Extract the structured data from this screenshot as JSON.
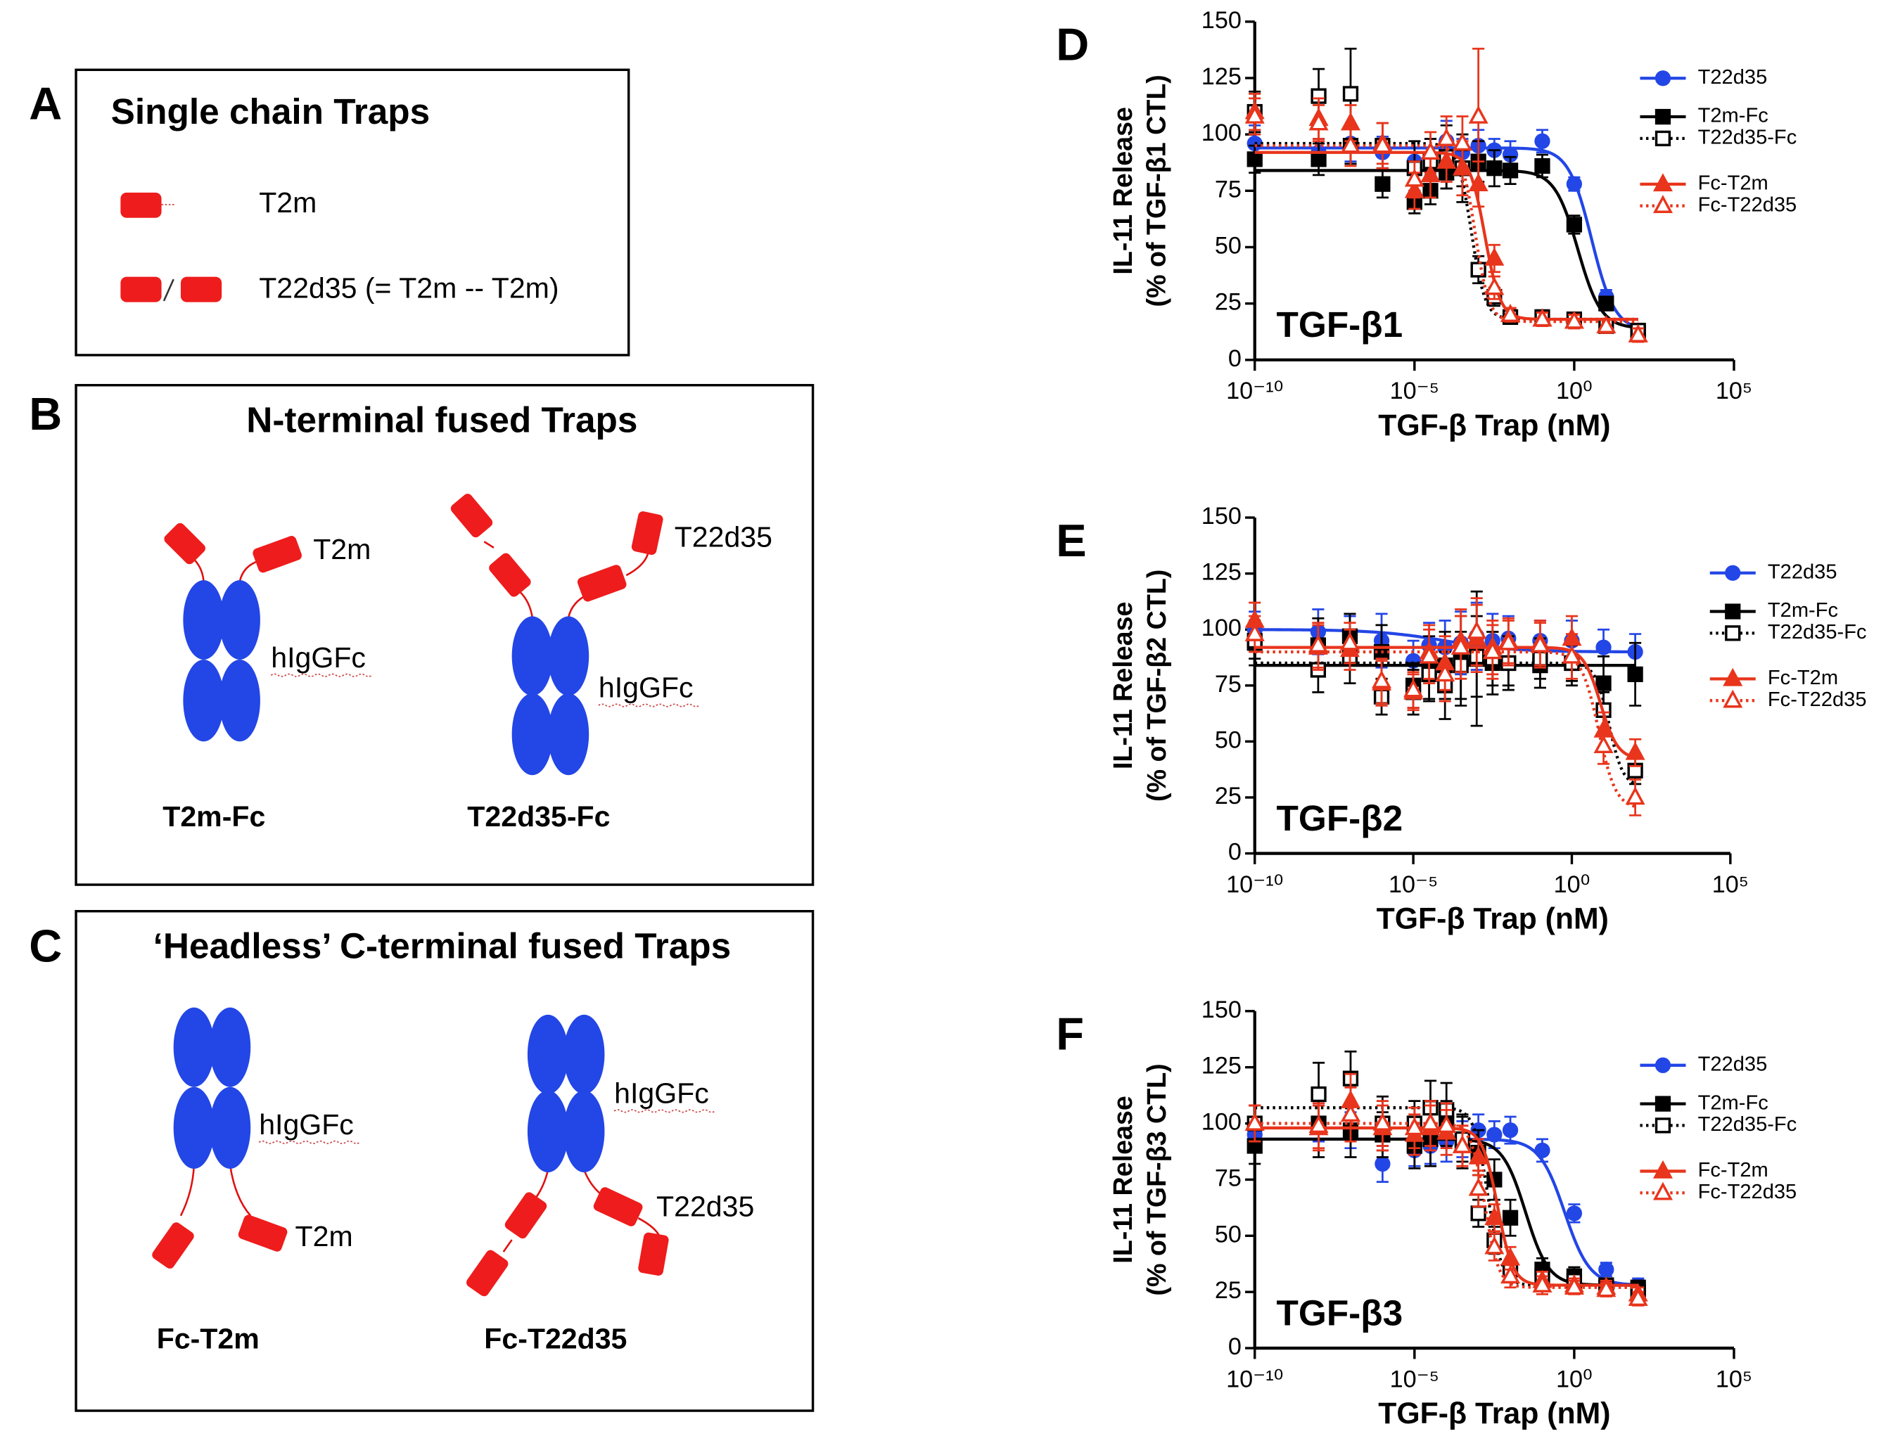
{
  "panels": [
    {
      "letter": "A",
      "title": "Single chain Traps",
      "items": [
        "T2m",
        "T22d35 (= T2m -- T2m)"
      ]
    },
    {
      "letter": "B",
      "title": "N-terminal fused Traps",
      "constructs": [
        {
          "name": "T2m-Fc",
          "arm": "T2m",
          "fc": "hIgGFc"
        },
        {
          "name": "T22d35-Fc",
          "arm": "T22d35",
          "fc": "hIgGFc"
        }
      ]
    },
    {
      "letter": "C",
      "title": "‘Headless’ C-terminal fused Traps",
      "constructs": [
        {
          "name": "Fc-T2m",
          "arm": "T2m",
          "fc": "hIgGFc"
        },
        {
          "name": "Fc-T22d35",
          "arm": "T22d35",
          "fc": "hIgGFc"
        }
      ]
    }
  ],
  "chart_data": [
    {
      "type": "scatter",
      "panel": "D",
      "title": "TGF-β1",
      "ylabel": "IL-11 Release",
      "ylabel_sub": "(% of TGF-β1 CTL)",
      "xlabel": "TGF-β Trap (nM)",
      "xscale": "log",
      "xlim": [
        1e-10,
        100000
      ],
      "ylim": [
        0,
        150
      ],
      "xticks": [
        {
          "value": 1e-10,
          "label": "10⁻¹⁰"
        },
        {
          "value": 1e-05,
          "label": "10⁻⁵"
        },
        {
          "value": 1,
          "label": "10⁰"
        },
        {
          "value": 100000,
          "label": "10⁵"
        }
      ],
      "yticks": [
        0,
        25,
        50,
        75,
        100,
        125,
        150
      ],
      "x": [
        1e-10,
        1e-08,
        1e-07,
        1e-06,
        1e-05,
        3.16e-05,
        0.0001,
        0.000316,
        0.001,
        0.00316,
        0.01,
        0.1,
        1,
        10,
        100
      ],
      "series": [
        {
          "name": "T22d35",
          "color": "#2346e6",
          "marker": "circle",
          "filled": true,
          "dashed": false,
          "values": [
            96,
            92,
            96,
            92,
            88,
            90,
            97,
            92,
            95,
            93,
            91,
            97,
            78,
            28,
            12
          ],
          "errors": [
            8,
            6,
            8,
            7,
            6,
            8,
            9,
            6,
            7,
            5,
            6,
            5,
            3,
            3,
            3
          ],
          "fit": {
            "top": 94,
            "bottom": 13,
            "ic50": 3.5,
            "hill": 1.2
          }
        },
        {
          "name": "T2m-Fc",
          "color": "#000000",
          "marker": "square",
          "filled": true,
          "dashed": false,
          "values": [
            89,
            89,
            95,
            78,
            70,
            75,
            83,
            85,
            88,
            85,
            84,
            86,
            60,
            25,
            12
          ],
          "errors": [
            6,
            7,
            8,
            6,
            5,
            6,
            7,
            8,
            9,
            8,
            6,
            5,
            4,
            3,
            3
          ],
          "fit": {
            "top": 84,
            "bottom": 14,
            "ic50": 1.3,
            "hill": 1.2
          }
        },
        {
          "name": "T22d35-Fc",
          "color": "#000000",
          "marker": "square",
          "filled": false,
          "dashed": true,
          "values": [
            110,
            117,
            118,
            95,
            85,
            88,
            90,
            85,
            40,
            28,
            19,
            19,
            18,
            15,
            13
          ],
          "errors": [
            9,
            12,
            20,
            10,
            12,
            10,
            14,
            15,
            6,
            4,
            3,
            3,
            3,
            3,
            3
          ],
          "fit": {
            "top": 96,
            "bottom": 18,
            "ic50": 0.0006,
            "hill": 2
          }
        },
        {
          "name": "Fc-T2m",
          "color": "#e8351c",
          "marker": "triangle",
          "filled": true,
          "dashed": false,
          "values": [
            110,
            107,
            105,
            96,
            75,
            82,
            88,
            85,
            78,
            45,
            20,
            18,
            17,
            15,
            11
          ],
          "errors": [
            8,
            9,
            8,
            9,
            8,
            10,
            9,
            12,
            10,
            6,
            3,
            3,
            3,
            3,
            3
          ],
          "fit": {
            "top": 92,
            "bottom": 18,
            "ic50": 0.0016,
            "hill": 1.8
          }
        },
        {
          "name": "Fc-T22d35",
          "color": "#e8351c",
          "marker": "triangle",
          "filled": false,
          "dashed": true,
          "values": [
            108,
            105,
            95,
            95,
            80,
            92,
            98,
            96,
            108,
            32,
            20,
            18,
            17,
            15,
            11
          ],
          "errors": [
            8,
            8,
            9,
            10,
            8,
            9,
            10,
            12,
            30,
            5,
            3,
            3,
            3,
            3,
            3
          ],
          "fit": {
            "top": 95,
            "bottom": 17,
            "ic50": 0.0008,
            "hill": 2
          }
        }
      ]
    },
    {
      "type": "scatter",
      "panel": "E",
      "title": "TGF-β2",
      "ylabel": "IL-11 Release",
      "ylabel_sub": "(% of TGF-β2 CTL)",
      "xlabel": "TGF-β Trap (nM)",
      "xscale": "log",
      "xlim": [
        1e-10,
        100000
      ],
      "ylim": [
        0,
        150
      ],
      "xticks": [
        {
          "value": 1e-10,
          "label": "10⁻¹⁰"
        },
        {
          "value": 1e-05,
          "label": "10⁻⁵"
        },
        {
          "value": 1,
          "label": "10⁰"
        },
        {
          "value": 100000,
          "label": "10⁵"
        }
      ],
      "yticks": [
        0,
        25,
        50,
        75,
        100,
        125,
        150
      ],
      "x": [
        1e-10,
        1e-08,
        1e-07,
        1e-06,
        1e-05,
        3.16e-05,
        0.0001,
        0.000316,
        0.001,
        0.00316,
        0.01,
        0.1,
        1,
        10,
        100
      ],
      "series": [
        {
          "name": "T22d35",
          "color": "#2346e6",
          "marker": "circle",
          "filled": true,
          "dashed": false,
          "values": [
            100,
            99,
            97,
            95,
            86,
            93,
            92,
            94,
            97,
            95,
            96,
            95,
            95,
            92,
            90
          ],
          "errors": [
            8,
            10,
            9,
            12,
            9,
            10,
            12,
            14,
            15,
            12,
            10,
            9,
            9,
            8,
            8
          ],
          "fit": {
            "top": 100,
            "bottom": 90,
            "ic50": 0.0001,
            "hill": 0.4
          }
        },
        {
          "name": "T2m-Fc",
          "color": "#000000",
          "marker": "square",
          "filled": true,
          "dashed": false,
          "values": [
            94,
            93,
            97,
            90,
            75,
            83,
            84,
            86,
            87,
            85,
            85,
            84,
            85,
            76,
            80
          ],
          "errors": [
            10,
            12,
            10,
            12,
            10,
            14,
            15,
            20,
            30,
            14,
            12,
            10,
            10,
            12,
            14
          ],
          "fit": {
            "top": 84,
            "bottom": 84,
            "ic50": 1,
            "hill": 1
          }
        },
        {
          "name": "T22d35-Fc",
          "color": "#000000",
          "marker": "square",
          "filled": false,
          "dashed": true,
          "values": [
            95,
            82,
            88,
            70,
            72,
            80,
            75,
            84,
            88,
            87,
            85,
            87,
            85,
            64,
            37
          ],
          "errors": [
            8,
            10,
            12,
            8,
            10,
            12,
            15,
            15,
            18,
            12,
            10,
            9,
            8,
            8,
            6
          ],
          "fit": {
            "top": 85,
            "bottom": 30,
            "ic50": 15,
            "hill": 2
          }
        },
        {
          "name": "Fc-T2m",
          "color": "#e8351c",
          "marker": "triangle",
          "filled": true,
          "dashed": false,
          "values": [
            104,
            92,
            91,
            76,
            72,
            90,
            85,
            95,
            96,
            92,
            95,
            94,
            96,
            55,
            45
          ],
          "errors": [
            8,
            10,
            9,
            10,
            8,
            12,
            12,
            14,
            15,
            12,
            10,
            10,
            10,
            8,
            6
          ],
          "fit": {
            "top": 92,
            "bottom": 42,
            "ic50": 8,
            "hill": 1.6
          }
        },
        {
          "name": "Fc-T22d35",
          "color": "#e8351c",
          "marker": "triangle",
          "filled": false,
          "dashed": true,
          "values": [
            98,
            93,
            94,
            77,
            73,
            88,
            80,
            92,
            99,
            90,
            94,
            93,
            88,
            48,
            25
          ],
          "errors": [
            8,
            10,
            9,
            10,
            8,
            12,
            12,
            14,
            15,
            12,
            10,
            10,
            10,
            8,
            8
          ],
          "fit": {
            "top": 90,
            "bottom": 20,
            "ic50": 7,
            "hill": 1.6
          }
        }
      ]
    },
    {
      "type": "scatter",
      "panel": "F",
      "title": "TGF-β3",
      "ylabel": "IL-11 Release",
      "ylabel_sub": "(% of TGF-β3 CTL)",
      "xlabel": "TGF-β Trap (nM)",
      "xscale": "log",
      "xlim": [
        1e-10,
        100000
      ],
      "ylim": [
        0,
        150
      ],
      "xticks": [
        {
          "value": 1e-10,
          "label": "10⁻¹⁰"
        },
        {
          "value": 1e-05,
          "label": "10⁻⁵"
        },
        {
          "value": 1,
          "label": "10⁰"
        },
        {
          "value": 100000,
          "label": "10⁵"
        }
      ],
      "yticks": [
        0,
        25,
        50,
        75,
        100,
        125,
        150
      ],
      "x": [
        1e-10,
        1e-08,
        1e-07,
        1e-06,
        1e-05,
        3.16e-05,
        0.0001,
        0.000316,
        0.001,
        0.00316,
        0.01,
        0.1,
        1,
        10,
        100
      ],
      "series": [
        {
          "name": "T22d35",
          "color": "#2346e6",
          "marker": "circle",
          "filled": true,
          "dashed": false,
          "values": [
            95,
            100,
            97,
            82,
            88,
            90,
            92,
            93,
            97,
            95,
            97,
            88,
            60,
            35,
            28
          ],
          "errors": [
            6,
            8,
            8,
            8,
            7,
            8,
            9,
            8,
            7,
            6,
            6,
            5,
            4,
            3,
            3
          ],
          "fit": {
            "top": 93,
            "bottom": 28,
            "ic50": 0.5,
            "hill": 1.1
          }
        },
        {
          "name": "T2m-Fc",
          "color": "#000000",
          "marker": "square",
          "filled": true,
          "dashed": false,
          "values": [
            90,
            100,
            97,
            95,
            90,
            93,
            100,
            92,
            87,
            75,
            58,
            35,
            32,
            28,
            27
          ],
          "errors": [
            8,
            15,
            12,
            10,
            10,
            12,
            10,
            12,
            10,
            9,
            8,
            5,
            4,
            3,
            3
          ],
          "fit": {
            "top": 93,
            "bottom": 28,
            "ic50": 0.03,
            "hill": 1.2
          }
        },
        {
          "name": "T22d35-Fc",
          "color": "#000000",
          "marker": "square",
          "filled": false,
          "dashed": true,
          "values": [
            100,
            113,
            120,
            100,
            100,
            107,
            106,
            93,
            60,
            48,
            35,
            32,
            30,
            27,
            25
          ],
          "errors": [
            8,
            14,
            12,
            12,
            10,
            12,
            12,
            10,
            6,
            6,
            4,
            3,
            3,
            3,
            3
          ],
          "fit": {
            "top": 107,
            "bottom": 28,
            "ic50": 0.002,
            "hill": 2
          }
        },
        {
          "name": "Fc-T2m",
          "color": "#e8351c",
          "marker": "triangle",
          "filled": true,
          "dashed": false,
          "values": [
            100,
            98,
            110,
            98,
            95,
            98,
            96,
            90,
            85,
            58,
            40,
            30,
            28,
            27,
            24
          ],
          "errors": [
            8,
            10,
            12,
            10,
            9,
            10,
            10,
            9,
            8,
            6,
            5,
            4,
            3,
            3,
            3
          ],
          "fit": {
            "top": 98,
            "bottom": 28,
            "ic50": 0.004,
            "hill": 1.8
          }
        },
        {
          "name": "Fc-T22d35",
          "color": "#e8351c",
          "marker": "triangle",
          "filled": false,
          "dashed": true,
          "values": [
            100,
            99,
            104,
            100,
            98,
            100,
            99,
            90,
            71,
            45,
            32,
            28,
            27,
            26,
            22
          ],
          "errors": [
            8,
            10,
            12,
            10,
            9,
            10,
            10,
            9,
            8,
            6,
            5,
            4,
            3,
            3,
            3
          ],
          "fit": {
            "top": 100,
            "bottom": 27,
            "ic50": 0.0016,
            "hill": 2
          }
        }
      ]
    }
  ]
}
